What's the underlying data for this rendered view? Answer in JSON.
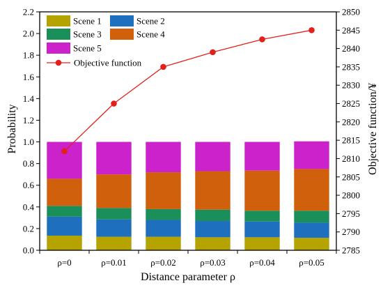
{
  "chart_data": {
    "type": "bar",
    "categories": [
      "ρ=0",
      "ρ=0.01",
      "ρ=0.02",
      "ρ=0.03",
      "ρ=0.04",
      "ρ=0.05"
    ],
    "series": [
      {
        "name": "Scene 1",
        "color": "#b5a400",
        "values": [
          0.135,
          0.125,
          0.125,
          0.12,
          0.12,
          0.115
        ]
      },
      {
        "name": "Scene 2",
        "color": "#1f6fbf",
        "values": [
          0.175,
          0.16,
          0.155,
          0.15,
          0.145,
          0.14
        ]
      },
      {
        "name": "Scene 3",
        "color": "#1a8f5a",
        "values": [
          0.1,
          0.105,
          0.1,
          0.105,
          0.1,
          0.11
        ]
      },
      {
        "name": "Scene 4",
        "color": "#d0600c",
        "values": [
          0.25,
          0.31,
          0.34,
          0.355,
          0.37,
          0.385
        ]
      },
      {
        "name": "Scene 5",
        "color": "#cc22cc",
        "values": [
          0.34,
          0.3,
          0.28,
          0.27,
          0.265,
          0.255
        ]
      }
    ],
    "line_series": {
      "name": "Objective function",
      "color": "#e3201b",
      "axis": "right",
      "values": [
        2812,
        2825,
        2835,
        2839,
        2842.5,
        2845
      ]
    },
    "xlabel": "Distance parameter ρ",
    "ylabel": "Probability",
    "y2label": "Objective function/¥",
    "ylim": [
      0,
      2.2
    ],
    "y2lim": [
      2785,
      2850
    ],
    "yticks": [
      "0.0",
      "0.2",
      "0.4",
      "0.6",
      "0.8",
      "1.0",
      "1.2",
      "1.4",
      "1.6",
      "1.8",
      "2.0",
      "2.2"
    ],
    "y2ticks": [
      "2785",
      "2790",
      "2795",
      "2800",
      "2805",
      "2810",
      "2815",
      "2820",
      "2825",
      "2830",
      "2835",
      "2840",
      "2845",
      "2850"
    ],
    "legend_position": "top-left",
    "grid": false
  }
}
